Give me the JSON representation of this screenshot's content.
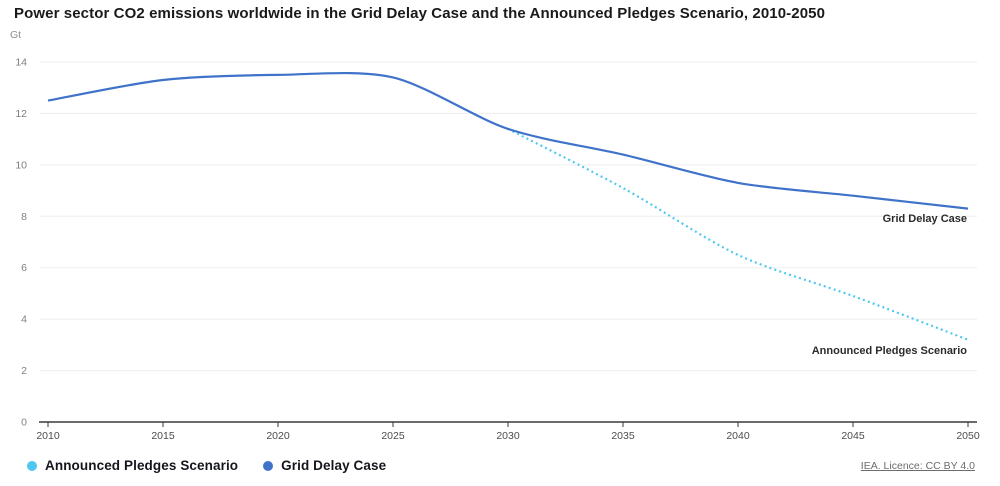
{
  "header": {
    "title": "Power sector CO2 emissions worldwide in the Grid Delay Case and the Announced Pledges Scenario, 2010-2050"
  },
  "chart_data": {
    "type": "line",
    "title": "Power sector CO2 emissions worldwide in the Grid Delay Case and the Announced Pledges Scenario, 2010-2050",
    "unit": "Gt",
    "xlabel": "",
    "ylabel": "Gt",
    "xlim": [
      2010,
      2050
    ],
    "ylim": [
      0,
      14
    ],
    "x_ticks": [
      2010,
      2015,
      2020,
      2025,
      2030,
      2035,
      2040,
      2045,
      2050
    ],
    "y_ticks": [
      0,
      2,
      4,
      6,
      8,
      10,
      12,
      14
    ],
    "grid": true,
    "legend_position": "bottom-left",
    "series": [
      {
        "name": "Announced Pledges Scenario",
        "color": "#4ec8f2",
        "line_style": "dotted",
        "x": [
          2030,
          2035,
          2040,
          2045,
          2050
        ],
        "values": [
          11.4,
          9.1,
          6.5,
          4.9,
          3.2
        ]
      },
      {
        "name": "Grid Delay Case",
        "color": "#3f73c9",
        "line_style": "solid",
        "x": [
          2010,
          2015,
          2020,
          2025,
          2030,
          2035,
          2040,
          2045,
          2050
        ],
        "values": [
          12.5,
          13.3,
          13.5,
          13.4,
          11.4,
          10.4,
          9.3,
          8.8,
          8.3
        ]
      }
    ],
    "annotations": [
      {
        "text": "Grid Delay Case",
        "series_index": 1,
        "position": "end-of-line"
      },
      {
        "text": "Announced Pledges Scenario",
        "series_index": 0,
        "position": "end-of-line"
      }
    ]
  },
  "footer": {
    "licence_text": "IEA. Licence: CC BY 4.0"
  }
}
